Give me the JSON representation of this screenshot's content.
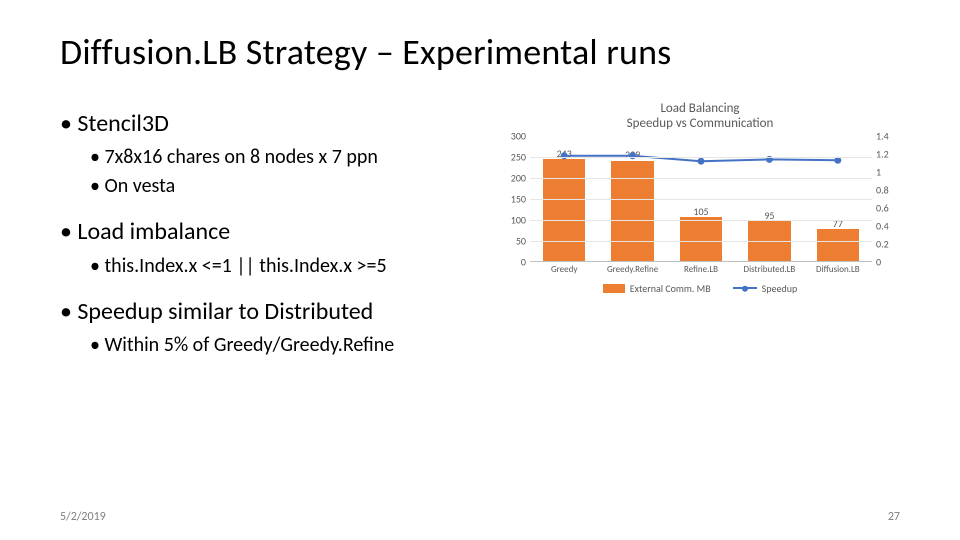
{
  "title": "Diffusion.LB Strategy – Experimental runs",
  "bullets": {
    "i0": {
      "t": "Stencil3D"
    },
    "i0_0": {
      "t": "7x8x16 chares on 8 nodes x 7 ppn"
    },
    "i0_1": {
      "t": "On vesta"
    },
    "i1": {
      "t": "Load imbalance"
    },
    "i1_0": {
      "t": "this.Index.x <=1 || this.Index.x >=5"
    },
    "i2": {
      "t": "Speedup similar to Distributed"
    },
    "i2_0": {
      "t": "Within 5% of Greedy/Greedy.Refine"
    }
  },
  "chart": {
    "title_l1": "Load Balancing",
    "title_l2": "Speedup vs Communication",
    "type": "bar+line",
    "categories": [
      "Greedy",
      "Greedy.Refine",
      "Refine.LB",
      "Distributed.LB",
      "Diffusion.LB"
    ],
    "bar_values": [
      243,
      239,
      105,
      95,
      77
    ],
    "line_values": [
      1.18,
      1.18,
      1.12,
      1.14,
      1.13
    ],
    "bar_color": "#ed7d31",
    "line_color": "#4472c4",
    "marker_color": "#4472c4",
    "left_axis": {
      "min": 0,
      "max": 300,
      "step": 50
    },
    "right_axis": {
      "min": 0,
      "max": 1.4,
      "step": 0.2
    },
    "grid_color": "#e6e6e6",
    "axis_font_color": "#595959",
    "legend": {
      "bar_label": "External Comm. MB",
      "line_label": "Speedup"
    }
  },
  "footer": {
    "date": "5/2/2019",
    "page": "27"
  }
}
